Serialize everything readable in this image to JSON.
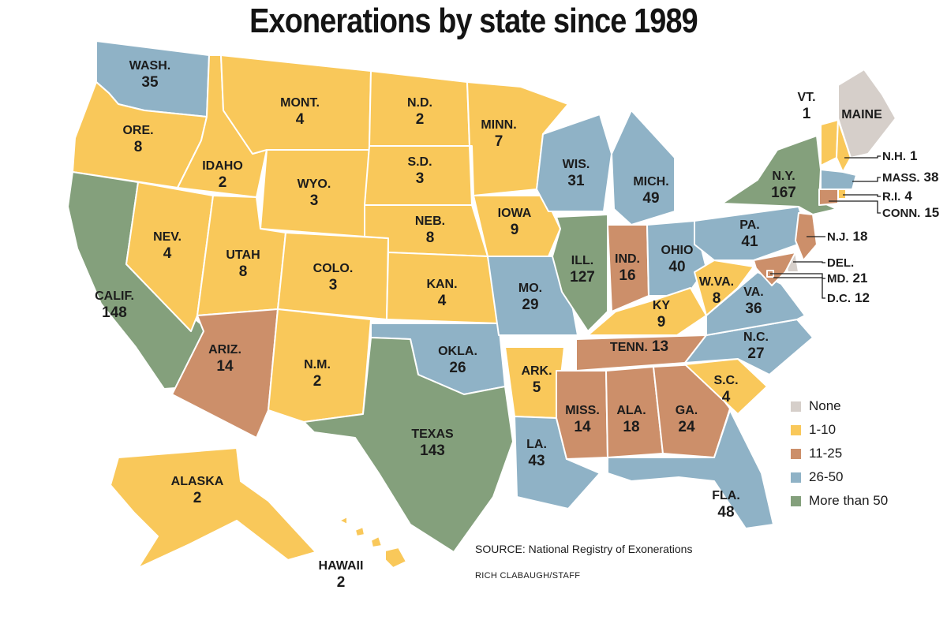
{
  "title": "Exonerations by state since 1989",
  "colors": {
    "none": "#d6cfca",
    "low": "#f9c85a",
    "mid": "#cc8f6a",
    "high": "#8fb2c6",
    "top": "#84a07c"
  },
  "legend": [
    {
      "label": "None",
      "key": "none"
    },
    {
      "label": "1-10",
      "key": "low"
    },
    {
      "label": "11-25",
      "key": "mid"
    },
    {
      "label": "26-50",
      "key": "high"
    },
    {
      "label": "More than 50",
      "key": "top"
    }
  ],
  "states": [
    {
      "name": "WASH.",
      "count": "35",
      "key": "high"
    },
    {
      "name": "ORE.",
      "count": "8",
      "key": "low"
    },
    {
      "name": "CALIF.",
      "count": "148",
      "key": "top"
    },
    {
      "name": "IDAHO",
      "count": "2",
      "key": "low"
    },
    {
      "name": "NEV.",
      "count": "4",
      "key": "low"
    },
    {
      "name": "MONT.",
      "count": "4",
      "key": "low"
    },
    {
      "name": "WYO.",
      "count": "3",
      "key": "low"
    },
    {
      "name": "UTAH",
      "count": "8",
      "key": "low"
    },
    {
      "name": "ARIZ.",
      "count": "14",
      "key": "mid"
    },
    {
      "name": "COLO.",
      "count": "3",
      "key": "low"
    },
    {
      "name": "N.M.",
      "count": "2",
      "key": "low"
    },
    {
      "name": "N.D.",
      "count": "2",
      "key": "low"
    },
    {
      "name": "S.D.",
      "count": "3",
      "key": "low"
    },
    {
      "name": "NEB.",
      "count": "8",
      "key": "low"
    },
    {
      "name": "KAN.",
      "count": "4",
      "key": "low"
    },
    {
      "name": "OKLA.",
      "count": "26",
      "key": "high"
    },
    {
      "name": "TEXAS",
      "count": "143",
      "key": "top"
    },
    {
      "name": "MINN.",
      "count": "7",
      "key": "low"
    },
    {
      "name": "IOWA",
      "count": "9",
      "key": "low"
    },
    {
      "name": "MO.",
      "count": "29",
      "key": "high"
    },
    {
      "name": "ARK.",
      "count": "5",
      "key": "low"
    },
    {
      "name": "LA.",
      "count": "43",
      "key": "high"
    },
    {
      "name": "WIS.",
      "count": "31",
      "key": "high"
    },
    {
      "name": "ILL.",
      "count": "127",
      "key": "top"
    },
    {
      "name": "MICH.",
      "count": "49",
      "key": "high"
    },
    {
      "name": "IND.",
      "count": "16",
      "key": "mid"
    },
    {
      "name": "OHIO",
      "count": "40",
      "key": "high"
    },
    {
      "name": "KY",
      "count": "9",
      "key": "low"
    },
    {
      "name": "TENN.",
      "count": "13",
      "key": "mid"
    },
    {
      "name": "MISS.",
      "count": "14",
      "key": "mid"
    },
    {
      "name": "ALA.",
      "count": "18",
      "key": "mid"
    },
    {
      "name": "GA.",
      "count": "24",
      "key": "mid"
    },
    {
      "name": "FLA.",
      "count": "48",
      "key": "high"
    },
    {
      "name": "S.C.",
      "count": "4",
      "key": "low"
    },
    {
      "name": "N.C.",
      "count": "27",
      "key": "high"
    },
    {
      "name": "VA.",
      "count": "36",
      "key": "high"
    },
    {
      "name": "W.VA.",
      "count": "8",
      "key": "low"
    },
    {
      "name": "PA.",
      "count": "41",
      "key": "high"
    },
    {
      "name": "N.Y.",
      "count": "167",
      "key": "top"
    },
    {
      "name": "VT.",
      "count": "1",
      "key": "low"
    },
    {
      "name": "MAINE",
      "count": "",
      "key": "none"
    },
    {
      "name": "N.H.",
      "count": "1",
      "key": "low"
    },
    {
      "name": "MASS.",
      "count": "38",
      "key": "high"
    },
    {
      "name": "R.I.",
      "count": "4",
      "key": "low"
    },
    {
      "name": "CONN.",
      "count": "15",
      "key": "mid"
    },
    {
      "name": "N.J.",
      "count": "18",
      "key": "mid"
    },
    {
      "name": "DEL.",
      "count": "",
      "key": "none"
    },
    {
      "name": "MD.",
      "count": "21",
      "key": "mid"
    },
    {
      "name": "D.C.",
      "count": "12",
      "key": "mid"
    },
    {
      "name": "ALASKA",
      "count": "2",
      "key": "low"
    },
    {
      "name": "HAWAII",
      "count": "2",
      "key": "low"
    }
  ],
  "source": "SOURCE: National Registry of Exonerations",
  "credit": "RICH CLABAUGH/STAFF"
}
